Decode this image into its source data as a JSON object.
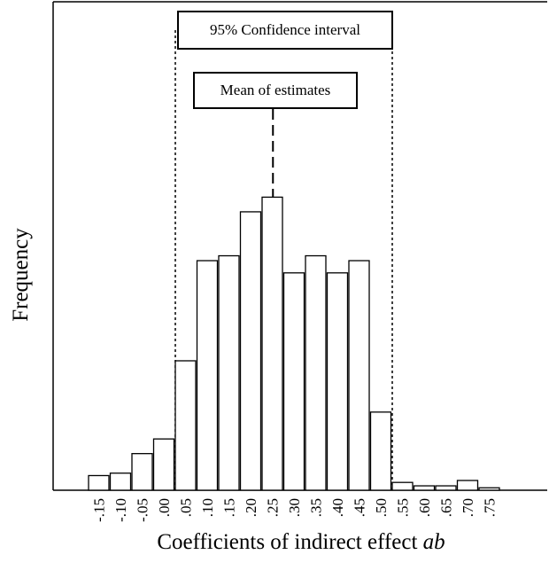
{
  "chart_data": {
    "type": "bar",
    "title": "",
    "xlabel": "Coefficients of indirect effect ",
    "xlabel_italic": "ab",
    "ylabel": "Frequency",
    "categories": [
      "-.15",
      "-.10",
      "-.05",
      ".00",
      ".05",
      ".10",
      ".15",
      ".20",
      ".25",
      ".30",
      ".35",
      ".40",
      ".45",
      ".50",
      ".55",
      ".60",
      ".65",
      ".70",
      ".75"
    ],
    "values": [
      3.0,
      3.5,
      7.5,
      10.5,
      26.5,
      47,
      48,
      57,
      60,
      44.5,
      48,
      44.5,
      47,
      16,
      1.6,
      0.9,
      0.9,
      2.0,
      0.5
    ],
    "ylim": [
      0,
      100
    ],
    "y_axis_ticks": false,
    "grid": false,
    "annotations": {
      "confidence_interval": {
        "label": "95% Confidence interval",
        "from": 0.025,
        "to": 0.525
      },
      "mean": {
        "label": "Mean of estimates",
        "value": 0.25
      }
    }
  }
}
